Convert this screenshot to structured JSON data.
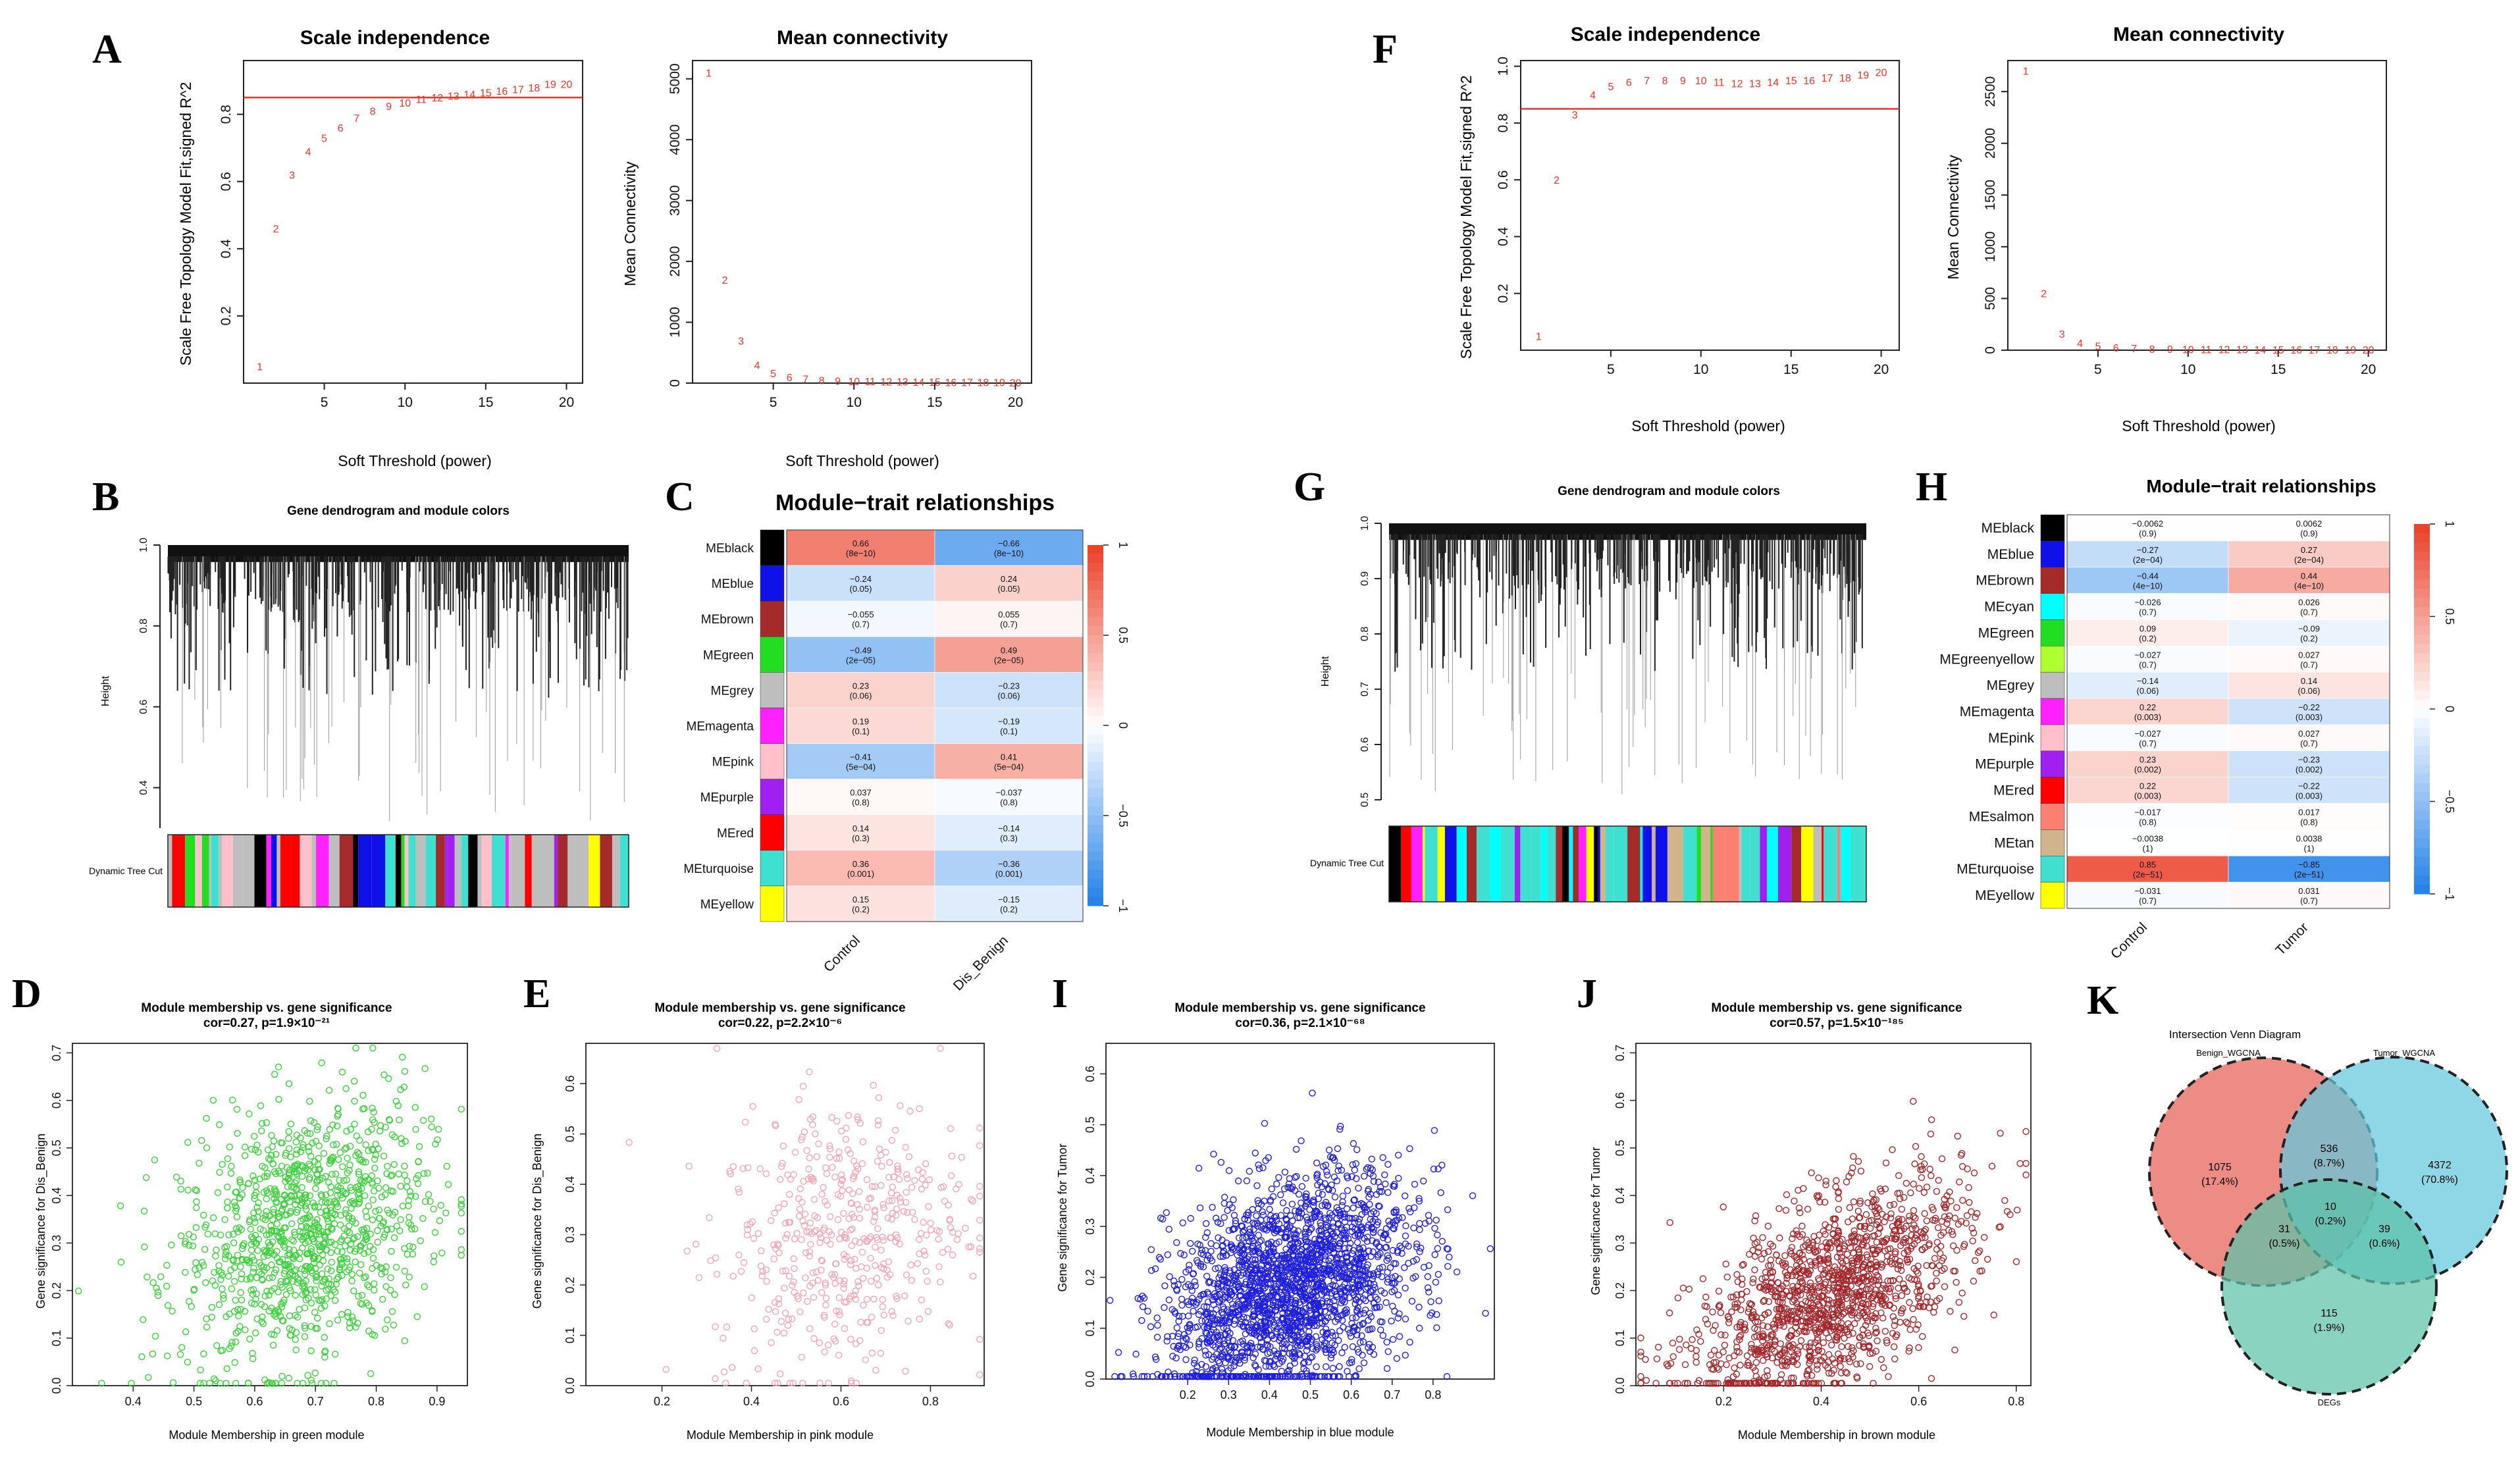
{
  "colors": {
    "red": "#e8362a",
    "green": "#3ad13a",
    "pink": "#f2a6b4",
    "blue": "#1f1fdd",
    "brown": "#a3262a",
    "venn_red": "#e8736a",
    "venn_blue": "#62c7dc",
    "venn_green": "#5cc2a8"
  },
  "panels": {
    "A": {
      "letter": "A",
      "title_left": "Scale independence",
      "title_right": "Mean connectivity",
      "ylabel_left": "Scale Free Topology Model Fit,signed R^2",
      "ylabel_right": "Mean Connectivity",
      "xlabel": "Soft Threshold (power)"
    },
    "F": {
      "letter": "F",
      "title_left": "Scale independence",
      "title_right": "Mean connectivity",
      "ylabel_left": "Scale Free Topology Model Fit,signed R^2",
      "ylabel_right": "Mean Connectivity",
      "xlabel": "Soft Threshold (power)"
    },
    "B": {
      "letter": "B",
      "title": "Gene dendrogram and module colors",
      "ylabel": "Height",
      "bar_label": "Dynamic Tree Cut"
    },
    "G": {
      "letter": "G",
      "title": "Gene dendrogram and module colors",
      "ylabel": "Height",
      "bar_label": "Dynamic Tree Cut"
    },
    "C": {
      "letter": "C",
      "title": "Module−trait relationships"
    },
    "H": {
      "letter": "H",
      "title": "Module−trait relationships"
    },
    "D": {
      "letter": "D",
      "title": "Module membership vs. gene significance",
      "subtitle": "cor=0.27, p=1.9×10⁻²¹",
      "xlabel": "Module Membership in green module",
      "ylabel": "Gene significance for  Dis_Benign"
    },
    "E": {
      "letter": "E",
      "title": "Module membership vs. gene significance",
      "subtitle": "cor=0.22, p=2.2×10⁻⁶",
      "xlabel": "Module Membership in pink module",
      "ylabel": "Gene significance for  Dis_Benign"
    },
    "I": {
      "letter": "I",
      "title": "Module membership vs. gene significance",
      "subtitle": "cor=0.36, p=2.1×10⁻⁶⁸",
      "xlabel": "Module Membership in blue module",
      "ylabel": "Gene significance for  Tumor"
    },
    "J": {
      "letter": "J",
      "title": "Module membership vs. gene significance",
      "subtitle": "cor=0.57, p=1.5×10⁻¹⁸⁵",
      "xlabel": "Module Membership in brown module",
      "ylabel": "Gene significance for  Tumor"
    },
    "K": {
      "letter": "K",
      "title": "Intersection Venn Diagram",
      "set1": "Benign_WGCNA",
      "set2": "Tumor_WGCNA",
      "set3": "DEGs",
      "regions": [
        {
          "count": "1075",
          "pct": "(17.4%)"
        },
        {
          "count": "536",
          "pct": "(8.7%)"
        },
        {
          "count": "4372",
          "pct": "(70.8%)"
        },
        {
          "count": "10",
          "pct": "(0.2%)"
        },
        {
          "count": "31",
          "pct": "(0.5%)"
        },
        {
          "count": "39",
          "pct": "(0.6%)"
        },
        {
          "count": "115",
          "pct": "(1.9%)"
        }
      ]
    }
  },
  "chart_data": [
    {
      "id": "A-left",
      "type": "scatter",
      "title": "Scale independence",
      "xlabel": "Soft Threshold (power)",
      "ylabel": "Scale Free Topology Model Fit,signed R^2",
      "x": [
        1,
        2,
        3,
        4,
        5,
        6,
        7,
        8,
        9,
        10,
        11,
        12,
        13,
        14,
        15,
        16,
        17,
        18,
        19,
        20
      ],
      "y": [
        0.05,
        0.46,
        0.62,
        0.69,
        0.73,
        0.76,
        0.79,
        0.81,
        0.825,
        0.835,
        0.845,
        0.85,
        0.855,
        0.86,
        0.865,
        0.87,
        0.875,
        0.88,
        0.89,
        0.89
      ],
      "xlim": [
        0,
        21
      ],
      "ylim": [
        0,
        0.96
      ],
      "xticks": [
        "5",
        "10",
        "15",
        "20"
      ],
      "yticks": [
        "0.2",
        "0.4",
        "0.6",
        "0.8"
      ],
      "hline": 0.85
    },
    {
      "id": "A-right",
      "type": "scatter",
      "title": "Mean connectivity",
      "xlabel": "Soft Threshold (power)",
      "ylabel": "Mean Connectivity",
      "x": [
        1,
        2,
        3,
        4,
        5,
        6,
        7,
        8,
        9,
        10,
        11,
        12,
        13,
        14,
        15,
        16,
        17,
        18,
        19,
        20
      ],
      "y": [
        5100,
        1700,
        700,
        300,
        160,
        100,
        70,
        50,
        40,
        35,
        30,
        28,
        25,
        22,
        20,
        18,
        16,
        15,
        14,
        13
      ],
      "xlim": [
        0,
        21
      ],
      "ylim": [
        0,
        5300
      ],
      "xticks": [
        "5",
        "10",
        "15",
        "20"
      ],
      "yticks": [
        "0",
        "1000",
        "2000",
        "3000",
        "4000",
        "5000"
      ]
    },
    {
      "id": "F-left",
      "type": "scatter",
      "title": "Scale independence",
      "xlabel": "Soft Threshold (power)",
      "ylabel": "Scale Free Topology Model Fit,signed R^2",
      "x": [
        1,
        2,
        3,
        4,
        5,
        6,
        7,
        8,
        9,
        10,
        11,
        12,
        13,
        14,
        15,
        16,
        17,
        18,
        19,
        20
      ],
      "y": [
        0.05,
        0.6,
        0.83,
        0.9,
        0.93,
        0.945,
        0.95,
        0.95,
        0.95,
        0.95,
        0.945,
        0.94,
        0.94,
        0.945,
        0.95,
        0.95,
        0.96,
        0.96,
        0.97,
        0.98
      ],
      "xlim": [
        0,
        21
      ],
      "ylim": [
        0,
        1.02
      ],
      "xticks": [
        "5",
        "10",
        "15",
        "20"
      ],
      "yticks": [
        "0.2",
        "0.4",
        "0.6",
        "0.8",
        "1.0"
      ],
      "hline": 0.85
    },
    {
      "id": "F-right",
      "type": "scatter",
      "title": "Mean connectivity",
      "xlabel": "Soft Threshold (power)",
      "ylabel": "Mean Connectivity",
      "x": [
        1,
        2,
        3,
        4,
        5,
        6,
        7,
        8,
        9,
        10,
        11,
        12,
        13,
        14,
        15,
        16,
        17,
        18,
        19,
        20
      ],
      "y": [
        2700,
        550,
        160,
        70,
        40,
        25,
        18,
        14,
        12,
        10,
        9,
        8,
        8,
        7,
        7,
        6,
        6,
        6,
        5,
        5
      ],
      "xlim": [
        0,
        21
      ],
      "ylim": [
        0,
        2800
      ],
      "xticks": [
        "5",
        "10",
        "15",
        "20"
      ],
      "yticks": [
        "0",
        "500",
        "1000",
        "1500",
        "2000",
        "2500"
      ]
    },
    {
      "id": "C",
      "type": "heatmap",
      "title": "Module−trait relationships",
      "columns": [
        "Control",
        "Dis_Benign"
      ],
      "rows": [
        "MEblack",
        "MEblue",
        "MEbrown",
        "MEgreen",
        "MEgrey",
        "MEmagenta",
        "MEpink",
        "MEpurple",
        "MEred",
        "MEturquoise",
        "MEyellow"
      ],
      "row_colors": [
        "#000000",
        "#1010e8",
        "#a52a2a",
        "#22dd22",
        "#bebebe",
        "#ff22ff",
        "#ffc0cb",
        "#a020f0",
        "#ff0000",
        "#40e0d0",
        "#ffff00"
      ],
      "values": [
        [
          0.66,
          -0.66
        ],
        [
          -0.24,
          0.24
        ],
        [
          -0.055,
          0.055
        ],
        [
          -0.49,
          0.49
        ],
        [
          0.23,
          -0.23
        ],
        [
          0.19,
          -0.19
        ],
        [
          -0.41,
          0.41
        ],
        [
          0.037,
          -0.037
        ],
        [
          0.14,
          -0.14
        ],
        [
          0.36,
          -0.36
        ],
        [
          0.15,
          -0.15
        ]
      ],
      "labels": [
        [
          "0.66",
          "−0.66"
        ],
        [
          "−0.24",
          "0.24"
        ],
        [
          "−0.055",
          "0.055"
        ],
        [
          "−0.49",
          "0.49"
        ],
        [
          "0.23",
          "−0.23"
        ],
        [
          "0.19",
          "−0.19"
        ],
        [
          "−0.41",
          "0.41"
        ],
        [
          "0.037",
          "−0.037"
        ],
        [
          "0.14",
          "−0.14"
        ],
        [
          "0.36",
          "−0.36"
        ],
        [
          "0.15",
          "−0.15"
        ]
      ],
      "pvalues": [
        [
          "(8e−10)",
          "(8e−10)"
        ],
        [
          "(0.05)",
          "(0.05)"
        ],
        [
          "(0.7)",
          "(0.7)"
        ],
        [
          "(2e−05)",
          "(2e−05)"
        ],
        [
          "(0.06)",
          "(0.06)"
        ],
        [
          "(0.1)",
          "(0.1)"
        ],
        [
          "(5e−04)",
          "(5e−04)"
        ],
        [
          "(0.8)",
          "(0.8)"
        ],
        [
          "(0.3)",
          "(0.3)"
        ],
        [
          "(0.001)",
          "(0.001)"
        ],
        [
          "(0.2)",
          "(0.2)"
        ]
      ],
      "legend_ticks": [
        "1",
        "0.5",
        "0",
        "−0.5",
        "−1"
      ]
    },
    {
      "id": "H",
      "type": "heatmap",
      "title": "Module−trait relationships",
      "columns": [
        "Control",
        "Tumor"
      ],
      "rows": [
        "MEblack",
        "MEblue",
        "MEbrown",
        "MEcyan",
        "MEgreen",
        "MEgreenyellow",
        "MEgrey",
        "MEmagenta",
        "MEpink",
        "MEpurple",
        "MEred",
        "MEsalmon",
        "MEtan",
        "MEturquoise",
        "MEyellow"
      ],
      "row_colors": [
        "#000000",
        "#1010e8",
        "#a52a2a",
        "#00ffff",
        "#22dd22",
        "#adff2f",
        "#bebebe",
        "#ff22ff",
        "#ffc0cb",
        "#a020f0",
        "#ff0000",
        "#fa8072",
        "#d2b48c",
        "#40e0d0",
        "#ffff00"
      ],
      "values": [
        [
          -0.0062,
          0.0062
        ],
        [
          -0.27,
          0.27
        ],
        [
          -0.44,
          0.44
        ],
        [
          -0.026,
          0.026
        ],
        [
          0.09,
          -0.09
        ],
        [
          -0.027,
          0.027
        ],
        [
          -0.14,
          0.14
        ],
        [
          0.22,
          -0.22
        ],
        [
          -0.027,
          0.027
        ],
        [
          0.23,
          -0.23
        ],
        [
          0.22,
          -0.22
        ],
        [
          -0.017,
          0.017
        ],
        [
          -0.0038,
          0.0038
        ],
        [
          0.85,
          -0.85
        ],
        [
          -0.031,
          0.031
        ]
      ],
      "labels": [
        [
          "−0.0062",
          "0.0062"
        ],
        [
          "−0.27",
          "0.27"
        ],
        [
          "−0.44",
          "0.44"
        ],
        [
          "−0.026",
          "0.026"
        ],
        [
          "0.09",
          "−0.09"
        ],
        [
          "−0.027",
          "0.027"
        ],
        [
          "−0.14",
          "0.14"
        ],
        [
          "0.22",
          "−0.22"
        ],
        [
          "−0.027",
          "0.027"
        ],
        [
          "0.23",
          "−0.23"
        ],
        [
          "0.22",
          "−0.22"
        ],
        [
          "−0.017",
          "0.017"
        ],
        [
          "−0.0038",
          "0.0038"
        ],
        [
          "0.85",
          "−0.85"
        ],
        [
          "−0.031",
          "0.031"
        ]
      ],
      "pvalues": [
        [
          "(0.9)",
          "(0.9)"
        ],
        [
          "(2e−04)",
          "(2e−04)"
        ],
        [
          "(4e−10)",
          "(4e−10)"
        ],
        [
          "(0.7)",
          "(0.7)"
        ],
        [
          "(0.2)",
          "(0.2)"
        ],
        [
          "(0.7)",
          "(0.7)"
        ],
        [
          "(0.06)",
          "(0.06)"
        ],
        [
          "(0.003)",
          "(0.003)"
        ],
        [
          "(0.7)",
          "(0.7)"
        ],
        [
          "(0.002)",
          "(0.002)"
        ],
        [
          "(0.003)",
          "(0.003)"
        ],
        [
          "(0.8)",
          "(0.8)"
        ],
        [
          "(1)",
          "(1)"
        ],
        [
          "(2e−51)",
          "(2e−51)"
        ],
        [
          "(0.7)",
          "(0.7)"
        ]
      ],
      "legend_ticks": [
        "1",
        "0.5",
        "0",
        "−0.5",
        "−1"
      ]
    },
    {
      "id": "D",
      "type": "scatter",
      "cor": 0.27,
      "xlim": [
        0.3,
        0.95
      ],
      "ylim": [
        0,
        0.72
      ],
      "xticks": [
        "0.4",
        "0.5",
        "0.6",
        "0.7",
        "0.8",
        "0.9"
      ],
      "yticks": [
        "0.0",
        "0.1",
        "0.2",
        "0.3",
        "0.4",
        "0.5",
        "0.6",
        "0.7"
      ],
      "mean_x": 0.68,
      "sd_x": 0.1,
      "mean_y": 0.32,
      "sd_y": 0.14,
      "n": 1100
    },
    {
      "id": "E",
      "type": "scatter",
      "cor": 0.22,
      "xlim": [
        0.03,
        0.92
      ],
      "ylim": [
        0,
        0.68
      ],
      "xticks": [
        "0.2",
        "0.4",
        "0.6",
        "0.8"
      ],
      "yticks": [
        "0.0",
        "0.1",
        "0.2",
        "0.3",
        "0.4",
        "0.5",
        "0.6"
      ],
      "mean_x": 0.6,
      "sd_x": 0.14,
      "mean_y": 0.3,
      "sd_y": 0.14,
      "n": 480
    },
    {
      "id": "I",
      "type": "scatter",
      "cor": 0.36,
      "xlim": [
        0,
        0.95
      ],
      "ylim": [
        0,
        0.66
      ],
      "xticks": [
        "0.2",
        "0.3",
        "0.4",
        "0.5",
        "0.6",
        "0.7",
        "0.8"
      ],
      "yticks": [
        "0.0",
        "0.1",
        "0.2",
        "0.3",
        "0.4",
        "0.5",
        "0.6"
      ],
      "mean_x": 0.45,
      "sd_x": 0.15,
      "mean_y": 0.18,
      "sd_y": 0.11,
      "n": 2200
    },
    {
      "id": "J",
      "type": "scatter",
      "cor": 0.57,
      "xlim": [
        0.02,
        0.83
      ],
      "ylim": [
        0,
        0.72
      ],
      "xticks": [
        "0.2",
        "0.4",
        "0.6",
        "0.8"
      ],
      "yticks": [
        "0.0",
        "0.1",
        "0.2",
        "0.3",
        "0.4",
        "0.5",
        "0.6",
        "0.7"
      ],
      "mean_x": 0.42,
      "sd_x": 0.14,
      "mean_y": 0.19,
      "sd_y": 0.12,
      "n": 1400
    }
  ]
}
